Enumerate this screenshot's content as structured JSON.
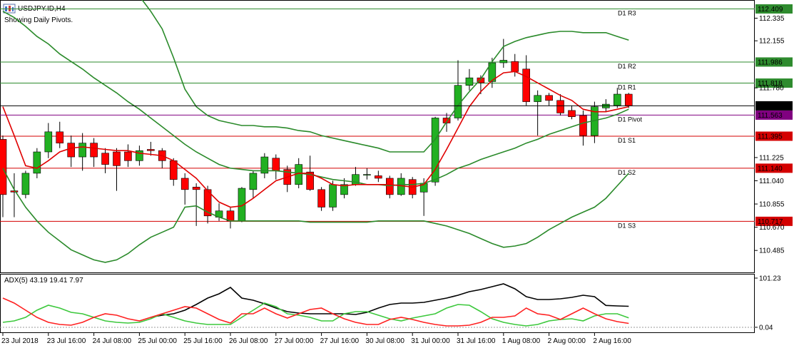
{
  "chart_data": [
    {
      "type": "candlestick",
      "title": "USDJPY.ID,H4",
      "subtitle": "Showing Daily Pivots.",
      "categories": [
        "23 Jul 2018",
        null,
        null,
        null,
        "23 Jul 16:00",
        null,
        null,
        null,
        "24 Jul 08:00",
        null,
        null,
        null,
        "25 Jul 00:00",
        null,
        null,
        null,
        "25 Jul 16:00",
        null,
        null,
        null,
        "26 Jul 08:00",
        null,
        null,
        null,
        "27 Jul 00:00",
        null,
        null,
        null,
        "27 Jul 16:00",
        null,
        null,
        null,
        "30 Jul 08:00",
        null,
        null,
        null,
        "31 Jul 00:00",
        null,
        null,
        null,
        "31 Jul 16:00",
        null,
        null,
        null,
        "1 Aug 08:00",
        null,
        null,
        null,
        "2 Aug 00:00",
        null,
        null,
        null,
        "2 Aug 16:00",
        null,
        null,
        null
      ],
      "open": [
        111.37,
        110.96,
        110.93,
        111.1,
        111.27,
        111.43,
        111.34,
        111.23,
        111.34,
        111.26,
        111.27,
        111.27,
        111.2,
        111.29,
        111.28,
        111.2,
        111.06,
        110.99,
        110.97,
        110.75,
        110.8,
        110.72,
        110.97,
        111.1,
        111.22,
        111.13,
        111.01,
        111.11,
        110.97,
        110.83,
        110.93,
        111.01,
        111.09,
        111.08,
        111.06,
        110.93,
        111.05,
        110.95,
        111.03,
        111.54,
        111.54,
        111.8,
        111.86,
        111.83,
        111.98,
        111.99,
        111.93,
        111.67,
        111.72,
        111.68,
        111.6,
        111.56,
        111.4,
        111.62,
        111.64,
        111.73
      ],
      "high": [
        111.4,
        111.1,
        111.12,
        111.3,
        111.5,
        111.51,
        111.4,
        111.42,
        111.38,
        111.3,
        111.3,
        111.33,
        111.32,
        111.35,
        111.3,
        111.22,
        111.1,
        111.02,
        111.0,
        110.86,
        110.83,
        110.99,
        111.12,
        111.26,
        111.25,
        111.16,
        111.22,
        111.24,
        110.99,
        111.04,
        111.06,
        111.15,
        111.14,
        111.12,
        111.08,
        111.1,
        111.07,
        111.06,
        111.55,
        111.58,
        112.0,
        111.93,
        111.88,
        112.02,
        112.17,
        112.05,
        112.04,
        111.76,
        111.74,
        111.73,
        111.64,
        111.6,
        111.67,
        111.69,
        111.78,
        111.74
      ],
      "low": [
        110.75,
        110.75,
        110.9,
        111.06,
        111.22,
        111.3,
        111.15,
        111.12,
        111.15,
        111.1,
        110.96,
        111.15,
        111.16,
        111.24,
        111.14,
        111.0,
        110.85,
        110.68,
        110.7,
        110.72,
        110.66,
        110.71,
        110.9,
        111.06,
        111.05,
        110.95,
        110.98,
        110.96,
        110.8,
        110.8,
        110.9,
        111.0,
        111.05,
        111.03,
        110.9,
        110.92,
        110.9,
        110.76,
        111.0,
        111.43,
        111.52,
        111.76,
        111.73,
        111.78,
        111.94,
        111.87,
        111.64,
        111.4,
        111.64,
        111.56,
        111.53,
        111.32,
        111.34,
        111.59,
        111.62,
        111.62
      ],
      "close": [
        110.93,
        110.95,
        111.1,
        111.27,
        111.43,
        111.34,
        111.23,
        111.34,
        111.23,
        111.17,
        111.16,
        111.2,
        111.28,
        111.28,
        111.2,
        111.05,
        110.97,
        110.97,
        110.76,
        110.8,
        110.72,
        110.98,
        111.1,
        111.23,
        111.12,
        111.01,
        111.17,
        110.97,
        110.83,
        111.01,
        111.01,
        111.09,
        111.09,
        111.06,
        110.93,
        111.06,
        110.93,
        111.02,
        111.54,
        111.5,
        111.8,
        111.86,
        111.82,
        111.98,
        112.0,
        111.91,
        111.67,
        111.72,
        111.68,
        111.58,
        111.55,
        111.4,
        111.63,
        111.65,
        111.73,
        111.637
      ],
      "up_color": "#22b022",
      "down_color": "#ff0000",
      "series": [
        {
          "color": "#2a8a2a",
          "values": [
            null,
            null,
            null,
            null,
            null,
            null,
            null,
            null,
            null,
            null,
            null,
            null,
            112.51,
            112.39,
            112.25,
            112.02,
            111.77,
            111.63,
            111.56,
            111.52,
            111.5,
            111.48,
            111.48,
            111.47,
            111.47,
            111.46,
            111.44,
            111.43,
            111.4,
            111.38,
            111.36,
            111.34,
            111.32,
            111.3,
            111.27,
            111.27,
            111.27,
            111.27,
            111.37,
            111.51,
            111.64,
            111.75,
            111.85,
            111.99,
            112.11,
            112.15,
            112.18,
            112.2,
            112.22,
            112.23,
            112.23,
            112.22,
            112.22,
            112.22,
            112.19,
            112.16
          ]
        },
        {
          "color": "#2a8a2a",
          "values": [
            112.39,
            112.34,
            112.27,
            112.19,
            112.13,
            112.05,
            111.99,
            111.93,
            111.86,
            111.8,
            111.74,
            111.67,
            111.61,
            111.54,
            111.47,
            111.4,
            111.33,
            111.27,
            111.22,
            111.17,
            111.14,
            111.13,
            111.12,
            111.12,
            111.12,
            111.11,
            111.1,
            111.09,
            111.07,
            111.05,
            111.04,
            111.03,
            111.01,
            111.01,
            111.0,
            111.01,
            111.01,
            111.02,
            111.05,
            111.09,
            111.14,
            111.17,
            111.21,
            111.24,
            111.27,
            111.3,
            111.34,
            111.37,
            111.41,
            111.44,
            111.47,
            111.5,
            111.52,
            111.54,
            111.57,
            111.61
          ]
        },
        {
          "color": "#2a8a2a",
          "values": [
            111.14,
            110.97,
            110.83,
            110.72,
            110.63,
            110.56,
            110.49,
            110.45,
            110.41,
            110.39,
            110.41,
            110.46,
            110.53,
            110.59,
            110.63,
            110.67,
            110.83,
            110.84,
            110.79,
            110.75,
            110.72,
            110.72,
            110.72,
            110.72,
            110.72,
            110.72,
            110.72,
            110.71,
            110.71,
            110.71,
            110.71,
            110.71,
            110.71,
            110.72,
            110.72,
            110.72,
            110.72,
            110.72,
            110.7,
            110.68,
            110.65,
            110.62,
            110.58,
            110.54,
            110.51,
            110.52,
            110.54,
            110.59,
            110.65,
            110.7,
            110.75,
            110.79,
            110.83,
            110.9,
            111.0,
            111.1
          ]
        },
        {
          "color": "#e00000",
          "values": [
            111.63,
            111.4,
            111.16,
            111.14,
            111.2,
            111.27,
            111.3,
            111.31,
            111.3,
            111.29,
            111.28,
            111.28,
            111.26,
            111.25,
            111.24,
            111.2,
            111.13,
            111.06,
            110.96,
            110.87,
            110.83,
            110.84,
            110.9,
            110.97,
            111.04,
            111.07,
            111.1,
            111.1,
            111.06,
            111.01,
            111.0,
            111.01,
            111.01,
            111.01,
            111.01,
            111.0,
            110.99,
            111.01,
            111.13,
            111.29,
            111.46,
            111.63,
            111.75,
            111.84,
            111.9,
            111.91,
            111.87,
            111.82,
            111.77,
            111.72,
            111.68,
            111.61,
            111.59,
            111.59,
            111.61,
            111.63
          ]
        }
      ],
      "levels": [
        {
          "label": "D1 R3",
          "value": 112.409,
          "color": "#2e8b2e"
        },
        {
          "label": "D1 R2",
          "value": 111.986,
          "color": "#2e8b2e"
        },
        {
          "label": "D1 R1",
          "value": 111.818,
          "color": "#2e8b2e"
        },
        {
          "label": "D1 Pivot",
          "value": 111.563,
          "color": "#800080"
        },
        {
          "label": "D1 S1",
          "value": 111.395,
          "color": "#d40000"
        },
        {
          "label": "D1 S2",
          "value": 111.14,
          "value_label": "111.140",
          "color": "#d40000"
        },
        {
          "label": "D1 S3",
          "value": 110.717,
          "color": "#d40000"
        }
      ],
      "ylim": [
        110.31,
        112.48
      ],
      "yticks": [
        112.335,
        112.155,
        {
          "value": 111.78,
          "label": "111.780"
        },
        111.225,
        {
          "value": 111.04,
          "label": "111.040"
        },
        110.855,
        {
          "value": 110.67,
          "label": "110.670"
        },
        110.485
      ]
    },
    {
      "type": "line",
      "title": "ADX(5)",
      "series": [
        {
          "color": "#000000",
          "values": [
            null,
            null,
            null,
            null,
            null,
            null,
            null,
            null,
            null,
            null,
            null,
            null,
            null,
            20.5,
            24.9,
            27.9,
            35.2,
            46.9,
            60.1,
            68.9,
            82.1,
            60.1,
            55.7,
            48.4,
            39.6,
            32.3,
            29.3,
            27.9,
            27.9,
            27.9,
            27.9,
            26.4,
            30.8,
            39.6,
            46.9,
            49.9,
            49.9,
            51.3,
            55.7,
            60.1,
            66.0,
            73.3,
            77.7,
            83.6,
            89.4,
            79.2,
            63.1,
            57.2,
            57.2,
            58.7,
            61.6,
            66.0,
            63.1,
            45.0,
            44.0,
            43.19
          ]
        },
        {
          "color": "#3cc83c",
          "values": [
            10.3,
            13.2,
            20.5,
            35.2,
            45.5,
            39.6,
            30.8,
            27.9,
            20.5,
            13.2,
            10.3,
            8.8,
            10.3,
            17.6,
            27.9,
            20.5,
            13.2,
            8.8,
            5.9,
            5.9,
            5.9,
            20.5,
            35.2,
            49.9,
            42.5,
            27.9,
            24.9,
            20.5,
            13.2,
            13.2,
            27.9,
            32.3,
            32.3,
            24.9,
            17.6,
            13.2,
            19.1,
            23.5,
            27.9,
            39.6,
            46.9,
            45.5,
            32.3,
            17.6,
            10.3,
            5.9,
            2.9,
            5.9,
            13.2,
            16.1,
            17.6,
            13.2,
            23.5,
            27.9,
            27.9,
            19.41
          ]
        },
        {
          "color": "#ff2020",
          "values": [
            60.1,
            49.9,
            35.2,
            20.5,
            10.3,
            5.9,
            4.4,
            10.3,
            20.5,
            27.9,
            24.9,
            17.6,
            13.2,
            20.5,
            27.9,
            35.2,
            42.5,
            39.6,
            27.9,
            16.1,
            8.8,
            27.9,
            27.9,
            39.6,
            27.9,
            19.1,
            27.9,
            36.7,
            39.6,
            27.9,
            17.6,
            10.3,
            5.9,
            5.9,
            16.1,
            20.5,
            16.1,
            10.3,
            5.9,
            2.9,
            2.9,
            4.4,
            10.3,
            20.5,
            20.5,
            23.5,
            39.6,
            27.9,
            24.9,
            16.1,
            27.9,
            39.6,
            27.9,
            17.6,
            11.7,
            7.97
          ]
        }
      ],
      "ylim": [
        -10.3,
        110
      ],
      "yticks": [
        101.23,
        0.04
      ]
    }
  ]
}
